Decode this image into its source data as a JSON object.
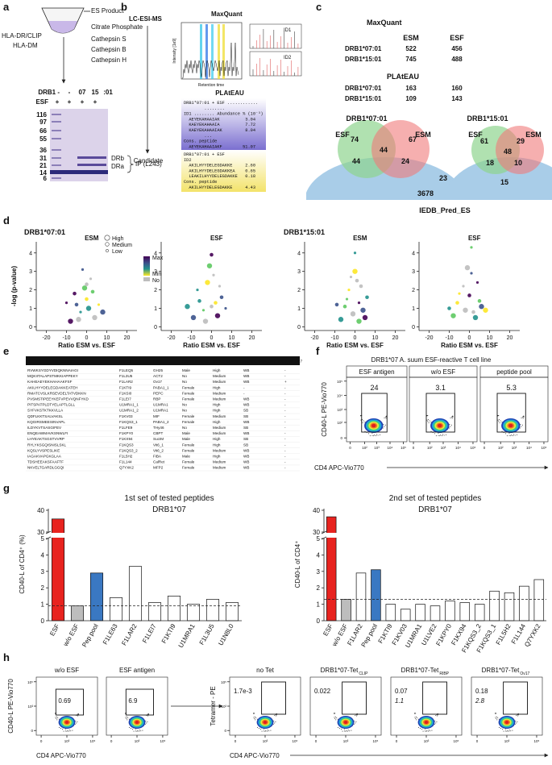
{
  "panel_letters": [
    "a",
    "b",
    "c",
    "d",
    "e",
    "f",
    "g",
    "h"
  ],
  "a": {
    "es_product": "ES Product",
    "steps": [
      "Citrate Phosphate",
      "Cathepsin S",
      "Cathepsin B",
      "Cathepsin H"
    ],
    "hla": "HLA-DR/CLIP",
    "dm": "HLA-DM",
    "gel_row1": [
      "DRB1 -",
      "-",
      "07",
      "15",
      ":01"
    ],
    "gel_row2": [
      "ESF",
      "+",
      "+",
      "+",
      "+"
    ],
    "markers": [
      116,
      97,
      66,
      55,
      36,
      31,
      21,
      14,
      6
    ],
    "bands": [
      "DRb",
      "DRa"
    ],
    "ip": "IP (L243)"
  },
  "b": {
    "lc": "LC-ESI-MS",
    "maxquant": "MaxQuant",
    "y_label": "Intensity [1e9]",
    "x_label": "Retention time",
    "ids": [
      "ID1",
      "ID2"
    ],
    "plateau": "PLAtEAU",
    "candidate": "Candidate",
    "box1": [
      "DRB1*07:01 + ESF ............",
      "        ........",
      "ID1 ........ Abundance % (10⁻³)",
      "  AEYEKAHAAIAK          3.04",
      "  KAEYEKAHAAIA          7.72",
      "  KAEYEKAHAAIAK         8.04",
      "        ...",
      "Cons. peptide",
      "  AEYEKAHAAIAKF        51.07"
    ],
    "box2": [
      "DRB1*07:01 + ESF",
      "ID2",
      "  AKILHYYDELEGDAKKE     2.60",
      "  AKILHYYDELEGDAKKEA    0.65",
      "  LEAKILHYYDELEGDAKKE   0.18",
      "Cons. peptide",
      "  AKILHYYDELEGDAKKE     4.43"
    ]
  },
  "c": {
    "maxquant": "MaxQuant",
    "plateau": "PLAtEAU",
    "cols": [
      "ESM",
      "ESF"
    ],
    "rows": [
      "DRB1*07:01",
      "DRB1*15:01"
    ],
    "maxquant_values": [
      [
        522,
        456
      ],
      [
        745,
        488
      ]
    ],
    "plateau_values": [
      [
        163,
        160
      ],
      [
        109,
        143
      ]
    ],
    "venn": [
      {
        "title": "DRB1*07:01",
        "sets": [
          "ESF",
          "ESM"
        ],
        "counts": [
          74,
          67,
          44,
          44,
          24,
          23
        ]
      },
      {
        "title": "DRB1*15:01",
        "sets": [
          "ESF",
          "ESM"
        ],
        "counts": [
          61,
          29,
          48,
          18,
          10,
          15
        ]
      }
    ],
    "iedb_count": 3678,
    "iedb_label": "IEDB_Pred_ES"
  },
  "d": {
    "type": "scatter",
    "y_label": "-log (p-value)",
    "x_label": "Ratio ESM vs. ESF",
    "xlim": [
      -25,
      25
    ],
    "xticks": [
      -20,
      -10,
      0,
      10,
      20
    ],
    "ylim": [
      -0.2,
      4.6
    ],
    "yticks": [
      0,
      1,
      2,
      3,
      4
    ],
    "size_legend": [
      "High",
      "Medium",
      "Low"
    ],
    "color_legend": [
      "Max",
      "Min",
      "No"
    ],
    "groups": [
      {
        "title": "DRB1*07:01",
        "panels": [
          {
            "name": "ESM",
            "x": [
              -8,
              -5,
              -3,
              -1,
              0,
              2,
              4,
              -6,
              -2,
              1,
              3,
              6,
              -4,
              0,
              -10,
              8
            ],
            "y": [
              0.3,
              1.2,
              0.8,
              2.1,
              1.5,
              2.6,
              0.5,
              1.8,
              3.1,
              1.0,
              1.9,
              1.2,
              0.4,
              2.3,
              1.3,
              0.8
            ]
          },
          {
            "name": "ESF",
            "x": [
              -9,
              -6,
              -4,
              -2,
              0,
              1,
              3,
              5,
              -7,
              -1,
              2,
              4,
              -3,
              0,
              7,
              -12
            ],
            "y": [
              0.5,
              1.4,
              0.9,
              2.4,
              1.1,
              2.8,
              0.6,
              1.6,
              2.0,
              3.3,
              1.3,
              2.2,
              0.3,
              3.9,
              1.0,
              1.1
            ]
          }
        ]
      },
      {
        "title": "DRB1*15:01",
        "panels": [
          {
            "name": "ESM",
            "x": [
              -7,
              -5,
              -3,
              -1,
              1,
              2,
              4,
              6,
              -4,
              0,
              3,
              -2,
              5,
              -9,
              0,
              2
            ],
            "y": [
              0.4,
              1.1,
              2.0,
              0.7,
              2.5,
              1.3,
              0.9,
              1.6,
              1.5,
              3.0,
              2.2,
              2.7,
              0.5,
              1.2,
              4.0,
              0.3
            ]
          },
          {
            "name": "ESF",
            "x": [
              -8,
              -6,
              -3,
              -2,
              0,
              1,
              3,
              5,
              -5,
              -1,
              2,
              4,
              6,
              -10,
              1,
              8
            ],
            "y": [
              0.6,
              1.3,
              2.2,
              0.9,
              1.7,
              2.9,
              0.5,
              1.4,
              1.8,
              3.2,
              0.8,
              2.4,
              1.1,
              1.0,
              4.3,
              0.9
            ]
          }
        ]
      }
    ]
  },
  "e": {
    "header": [
      "Pep Seq used",
      "Names",
      "Ref.",
      "Source enriched",
      "Source Abundance",
      "NetMHCIIPan_DR7",
      "IEDB_Im_DR7"
    ],
    "rows": [
      [
        "RVWKSYGDYVDIQKNNAIAGI",
        "F1LEQ5",
        "GH25",
        "Male",
        "High",
        "WB",
        "-"
      ],
      [
        "MQKIITALAPSTMKKIAPPEKY",
        "F1L3U5",
        "ACT2",
        "No",
        "Medium",
        "WB",
        "-"
      ],
      [
        "KAHEAEYEKHAHAAKFSF",
        "F1LAR2",
        "Ov17",
        "No",
        "Medium",
        "WB",
        "+"
      ],
      [
        "AKILHYYDELEGDAKKEATEH",
        "F1KTI9",
        "PABA1_1",
        "Female",
        "High",
        "-",
        "-"
      ],
      [
        "RMATCVSLKRSEVDELTATVDKKN",
        "F1KSI0",
        "PEPC",
        "Female",
        "Medium",
        "-",
        "-"
      ],
      [
        "PVSMSTIPEEYKEFVPEVVQNFYKD",
        "F1LEI7",
        "RBP",
        "Female",
        "Medium",
        "WB",
        "-"
      ],
      [
        "PITSPATPLDTYELAPTLGLL",
        "U1MRA1_1",
        "U1MRA1",
        "No",
        "High",
        "WB",
        "-"
      ],
      [
        "SYFVKSTKTKKVLLA",
        "U1MRA1_2",
        "U1MRA1",
        "No",
        "High",
        "SB",
        "-"
      ],
      [
        "QDFLKKTSALVAKSL",
        "F1KV03",
        "MIF",
        "Female",
        "Medium",
        "SB",
        "-"
      ],
      [
        "KQGIRSMEESINVAPL",
        "F1KQS3_1",
        "PABA1_2",
        "Female",
        "High",
        "WB",
        "-"
      ],
      [
        "ILDYKVTSASGIFEV",
        "F1LFE9",
        "THy46",
        "No",
        "Medium",
        "SB",
        "-"
      ],
      [
        "ENQEAWMAVKSNWLFI",
        "F1KPY0",
        "CBPT",
        "Male",
        "Medium",
        "WB",
        "-"
      ],
      [
        "LHYEAKTSGSTVVRP",
        "F1KX94",
        "SucIM",
        "Male",
        "High",
        "SB",
        "-"
      ],
      [
        "RYLYKSGQISNISLSKL",
        "F1KQS3",
        "Vit6_1",
        "Female",
        "High",
        "SB",
        "-"
      ],
      [
        "KQSLYVSPESLIKE",
        "F1KQS3_2",
        "Vit6_2",
        "Female",
        "Medium",
        "WB",
        "-"
      ],
      [
        "IAGAKVAPGKGLAA",
        "F1L5H2",
        "FiBA",
        "Male",
        "High",
        "WB",
        "-"
      ],
      [
        "TDSHEEAKSFAAFTF",
        "F1L144",
        "CalRet",
        "Female",
        "Medium",
        "WB",
        "-"
      ],
      [
        "NKVELTGARDLGGQI",
        "Q7YXK2",
        "MFP2",
        "Female",
        "Medium",
        "WB",
        "-"
      ]
    ]
  },
  "f": {
    "title": "DRB1*07 A. suum ESF-reactive T cell line",
    "conditions": [
      "ESF antigen",
      "w/o ESF",
      "peptide pool"
    ],
    "gate_values": [
      24,
      3.1,
      5.3
    ],
    "y_label": "CD40-L PE-Vio770",
    "x_label": "CD4 APC-Vio770",
    "ticks": [
      0,
      {
        "value": 100,
        "label": "10²"
      },
      {
        "value": 1000,
        "label": "10³"
      },
      {
        "value": 10000,
        "label": "10⁴"
      },
      {
        "value": 100000,
        "label": "10⁵"
      }
    ]
  },
  "g": {
    "charts": [
      {
        "type": "bar",
        "title": "1st set of tested peptides",
        "subtitle": "DRB1*07",
        "y_label": "CD40-L of CD4⁺ (%)",
        "categories": [
          "ESF",
          "w/o ESF",
          "Pep pool",
          "F1LE63",
          "F1LAR2",
          "F1LEI7",
          "F1KTI9",
          "U1MRA1",
          "F1L3U5",
          "U1N8L0"
        ],
        "values": [
          36,
          0.9,
          2.9,
          1.4,
          3.3,
          1.1,
          1.5,
          1.0,
          1.3,
          1.1
        ],
        "colors": [
          "#e8231f",
          "#bdbdbd",
          "#3a78c2",
          "#ffffff",
          "#ffffff",
          "#ffffff",
          "#ffffff",
          "#ffffff",
          "#ffffff",
          "#ffffff"
        ],
        "threshold": 0.9,
        "ylim_low": [
          0,
          5
        ],
        "yticks_low": [
          0,
          1,
          2,
          3,
          4,
          5
        ],
        "ylim_high": [
          30,
          40
        ],
        "yticks_high": [
          30,
          40
        ]
      },
      {
        "type": "bar",
        "title": "2nd set of tested peptides",
        "subtitle": "DRB1*07",
        "y_label": "CD40-L of CD4⁺",
        "categories": [
          "ESF",
          "w/o ESF",
          "F1LAR2",
          "Pep pool",
          "F1KTI9",
          "F1KV03",
          "U1MRA1",
          "U1LVE2",
          "F1KPY0",
          "F1KX94",
          "F1KQS3_2",
          "F1KQS3_1",
          "F1L5H2",
          "F1L144",
          "Q7YXK2"
        ],
        "values": [
          37,
          1.3,
          2.9,
          3.1,
          1.0,
          0.7,
          1.0,
          0.9,
          1.2,
          1.1,
          1.0,
          1.8,
          1.7,
          2.1,
          2.5
        ],
        "colors": [
          "#e8231f",
          "#bdbdbd",
          "#ffffff",
          "#3a78c2",
          "#ffffff",
          "#ffffff",
          "#ffffff",
          "#ffffff",
          "#ffffff",
          "#ffffff",
          "#ffffff",
          "#ffffff",
          "#ffffff",
          "#ffffff",
          "#ffffff"
        ],
        "threshold": 1.3,
        "ylim_low": [
          0,
          5
        ],
        "yticks_low": [
          0,
          1,
          2,
          3,
          4,
          5
        ],
        "ylim_high": [
          30,
          40
        ],
        "yticks_high": [
          30,
          40
        ]
      }
    ]
  },
  "h": {
    "y_labels": [
      "CD40-L PE-Vio770",
      "Tetramer - PE"
    ],
    "x_label": "CD4 APC-Vio770",
    "ticks": [
      0,
      {
        "value": 1000,
        "label": "10³"
      },
      {
        "value": 100000,
        "label": "10⁵"
      }
    ],
    "plots": [
      {
        "title": "w/o ESF",
        "gate": 0.69
      },
      {
        "title": "ESF antigen",
        "gate": 6.9
      },
      {
        "title": "no Tet",
        "gate": 0.0017,
        "value_label": "1.7e-3"
      },
      {
        "title": "DRB1*07-Tet",
        "subscript": "CLIP",
        "gate": 0.022
      },
      {
        "title": "DRB1*07-Tet",
        "subscript": "RIBP",
        "gate": 0.07,
        "second": 1.1
      },
      {
        "title": "DRB1*07-Tet",
        "subscript": "Ov17",
        "gate": 0.18,
        "second": 2.8
      }
    ]
  }
}
